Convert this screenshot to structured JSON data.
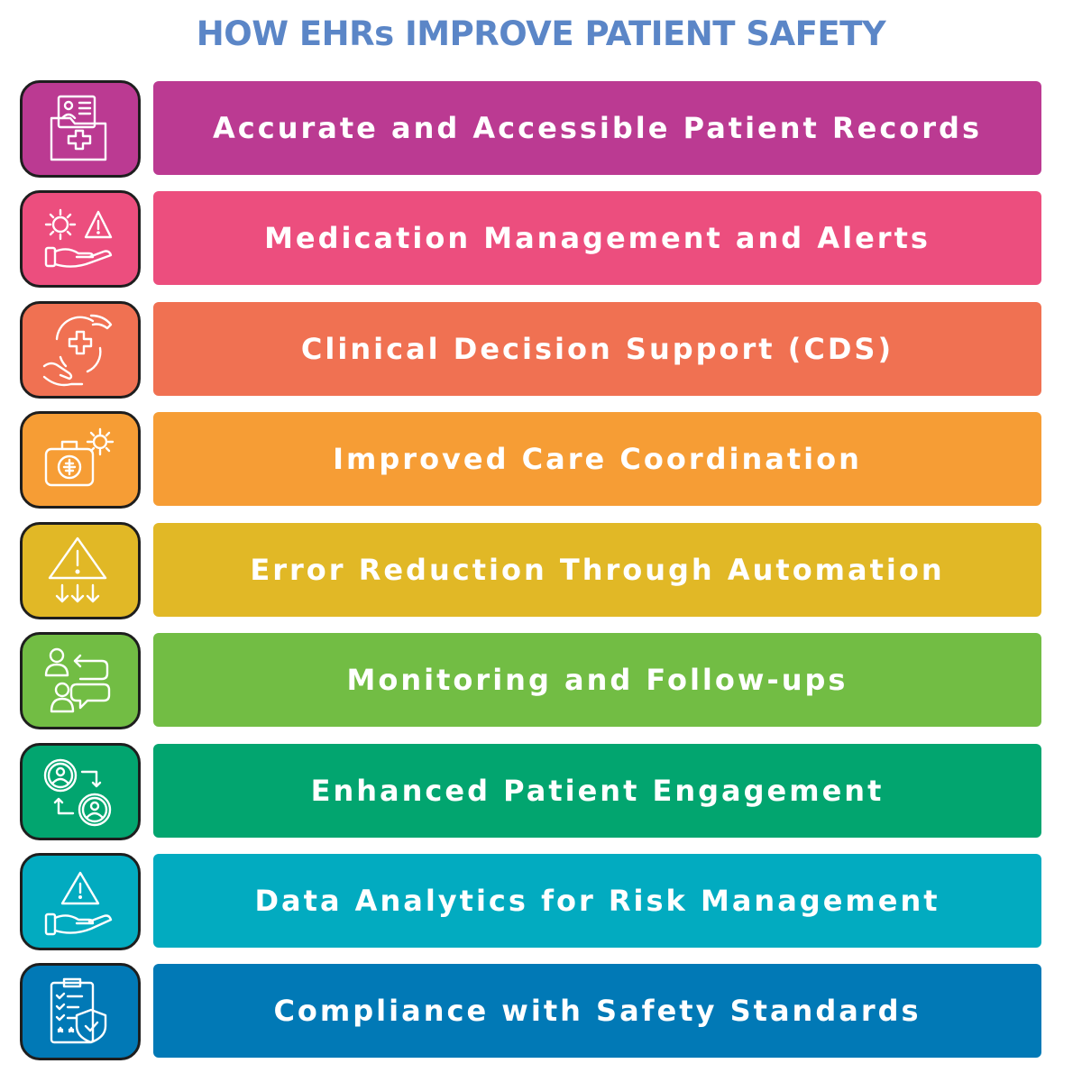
{
  "title": "HOW EHRs IMPROVE PATIENT SAFETY",
  "items": [
    {
      "label": "Accurate and Accessible Patient Records",
      "color": "#bb3a92",
      "icon": "patient-records-folder-icon"
    },
    {
      "label": "Medication Management and Alerts",
      "color": "#ec4e7e",
      "icon": "gear-alert-hand-icon"
    },
    {
      "label": "Clinical Decision Support (CDS)",
      "color": "#f07152",
      "icon": "medical-cross-hands-icon"
    },
    {
      "label": "Improved Care Coordination",
      "color": "#f69d35",
      "icon": "medical-bag-gear-icon"
    },
    {
      "label": "Error Reduction Through Automation",
      "color": "#e1b826",
      "icon": "warning-down-arrows-icon"
    },
    {
      "label": "Monitoring and Follow-ups",
      "color": "#72bd44",
      "icon": "people-chat-icon"
    },
    {
      "label": "Enhanced Patient Engagement",
      "color": "#02a56f",
      "icon": "patient-exchange-icon"
    },
    {
      "label": "Data Analytics for Risk Management",
      "color": "#02abc0",
      "icon": "risk-warning-hand-icon"
    },
    {
      "label": "Compliance with Safety Standards",
      "color": "#0179b6",
      "icon": "checklist-shield-icon"
    }
  ]
}
